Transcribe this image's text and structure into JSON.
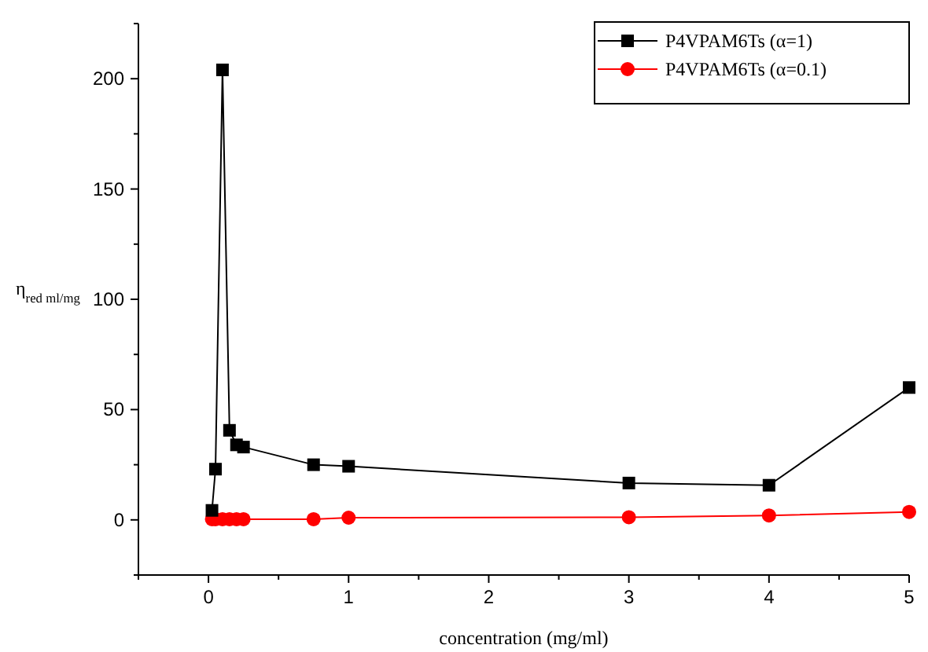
{
  "chart_data": {
    "type": "line",
    "xlabel": "concentration (mg/ml)",
    "ylabel": "η$_{red ml/mg}$",
    "xlim": [
      -0.5,
      5
    ],
    "ylim": [
      -25,
      225
    ],
    "xticks": [
      {
        "value": -0.5,
        "label": null
      },
      0,
      {
        "value": 0.5,
        "label": null
      },
      1,
      {
        "value": 1.5,
        "label": null
      },
      2,
      {
        "value": 2.5,
        "label": null
      },
      3,
      {
        "value": 3.5,
        "label": null
      },
      4,
      {
        "value": 4.5,
        "label": null
      },
      5
    ],
    "yticks": [
      {
        "value": -25,
        "label": null
      },
      0,
      {
        "value": 25,
        "label": null
      },
      50,
      {
        "value": 75,
        "label": null
      },
      100,
      {
        "value": 125,
        "label": null
      },
      150,
      {
        "value": 175,
        "label": null
      },
      200,
      {
        "value": 225,
        "label": null
      }
    ],
    "x": [
      0.025,
      0.05,
      0.1,
      0.15,
      0.2,
      0.25,
      0.75,
      1,
      3,
      4,
      5
    ],
    "series": [
      {
        "name": "P4VPAM6Ts (α=1)",
        "color": "#000000",
        "marker": "square",
        "values": [
          4.3,
          23,
          204,
          40.6,
          34,
          33,
          25,
          24.3,
          16.7,
          15.7,
          60
        ]
      },
      {
        "name": "P4VPAM6Ts (α=0.1)",
        "color": "#ff0000",
        "marker": "circle",
        "values": [
          0.3,
          0.3,
          0.3,
          0.3,
          0.3,
          0.3,
          0.3,
          1,
          1.2,
          2,
          3.6
        ]
      }
    ],
    "legend": "top right",
    "grid": false,
    "line_style": "solid"
  }
}
